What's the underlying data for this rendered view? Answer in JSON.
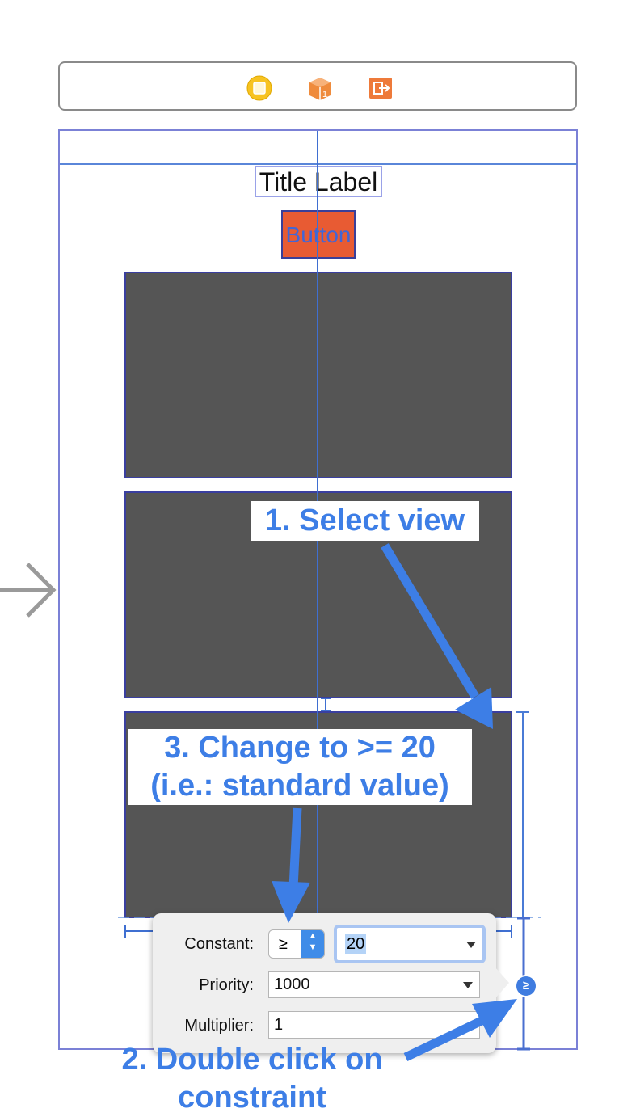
{
  "dock": {
    "icons": [
      "view-controller-icon",
      "first-responder-icon",
      "exit-icon"
    ],
    "first_responder_number": "1"
  },
  "scene": {
    "title_label": "Title Label",
    "button_label": "Button"
  },
  "callouts": {
    "step1": "1. Select view",
    "step3_line1": "3. Change to >= 20",
    "step3_line2": "(i.e.: standard value)",
    "step2_line1": "2. Double click on",
    "step2_line2": "constraint"
  },
  "popover": {
    "constant_label": "Constant:",
    "relation_symbol": "≥",
    "constant_value": "20",
    "priority_label": "Priority:",
    "priority_value": "1000",
    "multiplier_label": "Multiplier:",
    "multiplier_value": "1"
  },
  "constraint_badge": "≥",
  "colors": {
    "accent_blue": "#3d7ee6",
    "button_orange": "#e85b33",
    "view_gray": "#555555",
    "guide_blue": "#3f6fd1"
  }
}
